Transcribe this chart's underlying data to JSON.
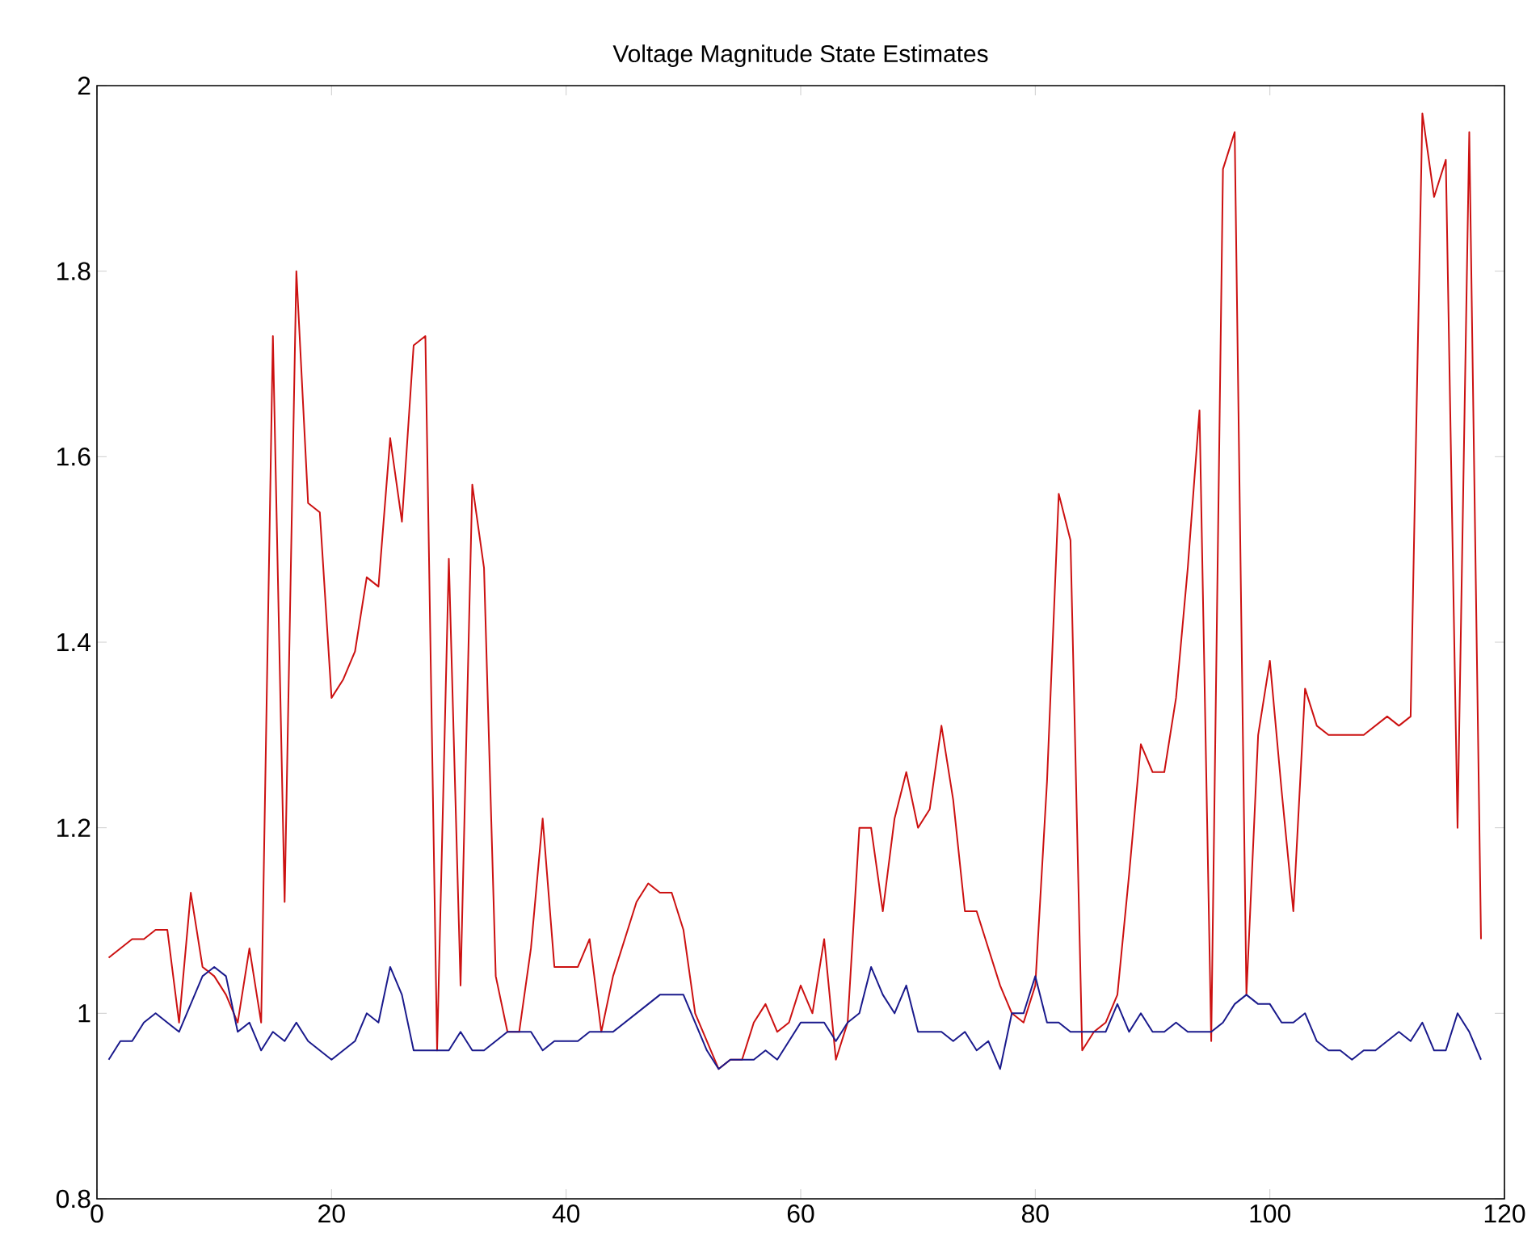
{
  "chart_data": {
    "type": "line",
    "title": "Voltage Magnitude State Estimates",
    "x": [
      1,
      2,
      3,
      4,
      5,
      6,
      7,
      8,
      9,
      10,
      11,
      12,
      13,
      14,
      15,
      16,
      17,
      18,
      19,
      20,
      21,
      22,
      23,
      24,
      25,
      26,
      27,
      28,
      29,
      30,
      31,
      32,
      33,
      34,
      35,
      36,
      37,
      38,
      39,
      40,
      41,
      42,
      43,
      44,
      45,
      46,
      47,
      48,
      49,
      50,
      51,
      52,
      53,
      54,
      55,
      56,
      57,
      58,
      59,
      60,
      61,
      62,
      63,
      64,
      65,
      66,
      67,
      68,
      69,
      70,
      71,
      72,
      73,
      74,
      75,
      76,
      77,
      78,
      79,
      80,
      81,
      82,
      83,
      84,
      85,
      86,
      87,
      88,
      89,
      90,
      91,
      92,
      93,
      94,
      95,
      96,
      97,
      98,
      99,
      100,
      101,
      102,
      103,
      104,
      105,
      106,
      107,
      108,
      109,
      110,
      111,
      112,
      113,
      114,
      115,
      116,
      117,
      118
    ],
    "series": [
      {
        "color": "#cc1111",
        "values": [
          1.06,
          1.07,
          1.08,
          1.08,
          1.09,
          1.09,
          0.99,
          1.13,
          1.05,
          1.04,
          1.02,
          0.99,
          1.07,
          0.99,
          1.73,
          1.12,
          1.8,
          1.55,
          1.54,
          1.34,
          1.36,
          1.39,
          1.47,
          1.46,
          1.62,
          1.53,
          1.72,
          1.73,
          0.96,
          1.49,
          1.03,
          1.57,
          1.48,
          1.04,
          0.98,
          0.98,
          1.07,
          1.21,
          1.05,
          1.05,
          1.05,
          1.08,
          0.98,
          1.04,
          1.08,
          1.12,
          1.14,
          1.13,
          1.13,
          1.09,
          1.0,
          0.97,
          0.94,
          0.95,
          0.95,
          0.99,
          1.01,
          0.98,
          0.99,
          1.03,
          1.0,
          1.08,
          0.95,
          0.99,
          1.2,
          1.2,
          1.11,
          1.21,
          1.26,
          1.2,
          1.22,
          1.31,
          1.23,
          1.11,
          1.11,
          1.07,
          1.03,
          1.0,
          0.99,
          1.03,
          1.25,
          1.56,
          1.51,
          0.96,
          0.98,
          0.99,
          1.02,
          1.15,
          1.29,
          1.26,
          1.26,
          1.34,
          1.48,
          1.65,
          0.97,
          1.91,
          1.95,
          1.02,
          1.3,
          1.38,
          1.24,
          1.11,
          1.35,
          1.31,
          1.3,
          1.3,
          1.3,
          1.3,
          1.31,
          1.32,
          1.31,
          1.32,
          1.97,
          1.88,
          1.92,
          1.2,
          1.95,
          1.08
        ]
      },
      {
        "color": "#1a1a8c",
        "values": [
          0.95,
          0.97,
          0.97,
          0.99,
          1.0,
          0.99,
          0.98,
          1.01,
          1.04,
          1.05,
          1.04,
          0.98,
          0.99,
          0.96,
          0.98,
          0.97,
          0.99,
          0.97,
          0.96,
          0.95,
          0.96,
          0.97,
          1.0,
          0.99,
          1.05,
          1.02,
          0.96,
          0.96,
          0.96,
          0.96,
          0.98,
          0.96,
          0.96,
          0.97,
          0.98,
          0.98,
          0.98,
          0.96,
          0.97,
          0.97,
          0.97,
          0.98,
          0.98,
          0.98,
          0.99,
          1.0,
          1.01,
          1.02,
          1.02,
          1.02,
          0.99,
          0.96,
          0.94,
          0.95,
          0.95,
          0.95,
          0.96,
          0.95,
          0.97,
          0.99,
          0.99,
          0.99,
          0.97,
          0.99,
          1.0,
          1.05,
          1.02,
          1.0,
          1.03,
          0.98,
          0.98,
          0.98,
          0.97,
          0.98,
          0.96,
          0.97,
          0.94,
          1.0,
          1.0,
          1.04,
          0.99,
          0.99,
          0.98,
          0.98,
          0.98,
          0.98,
          1.01,
          0.98,
          1.0,
          0.98,
          0.98,
          0.99,
          0.98,
          0.98,
          0.98,
          0.99,
          1.01,
          1.02,
          1.01,
          1.01,
          0.99,
          0.99,
          1.0,
          0.97,
          0.96,
          0.96,
          0.95,
          0.96,
          0.96,
          0.97,
          0.98,
          0.97,
          0.99,
          0.96,
          0.96,
          1.0,
          0.98,
          0.95
        ]
      }
    ],
    "xlim": [
      0,
      120
    ],
    "ylim": [
      0.8,
      2
    ],
    "xticks": [
      0,
      20,
      40,
      60,
      80,
      100,
      120
    ],
    "yticks": [
      0.8,
      1,
      1.2,
      1.4,
      1.6,
      1.8,
      2
    ],
    "grid": false
  }
}
